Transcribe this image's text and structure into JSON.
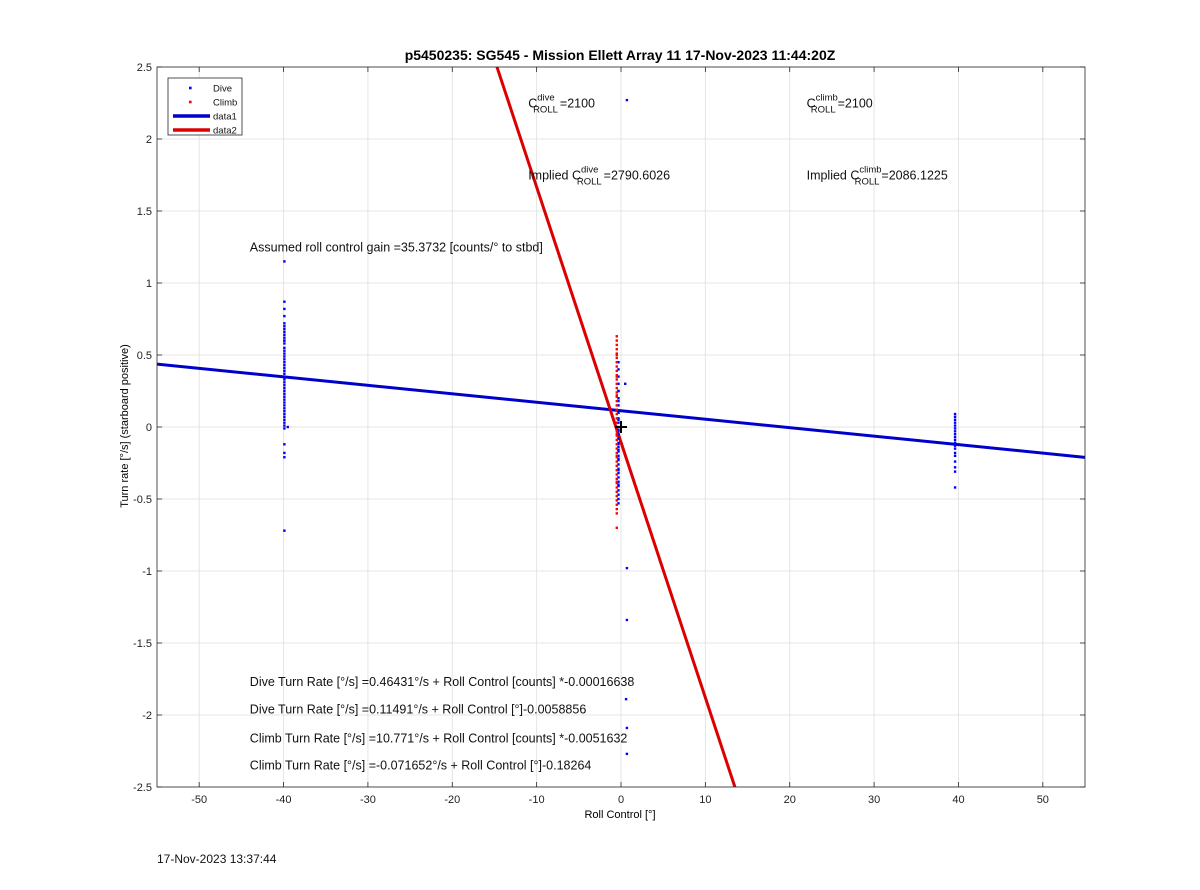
{
  "chart_data": {
    "type": "scatter",
    "title": "p5450235: SG545 - Mission Ellett Array 11 17-Nov-2023 11:44:20Z",
    "xlabel": "Roll Control [°]",
    "ylabel": "Turn rate [°/s] (starboard positive)",
    "xlim": [
      -55,
      55
    ],
    "ylim": [
      -2.5,
      2.5
    ],
    "x_ticks": [
      -50,
      -40,
      -30,
      -20,
      -10,
      0,
      10,
      20,
      30,
      40,
      50
    ],
    "y_ticks": [
      -2.5,
      -2,
      -1.5,
      -1,
      -0.5,
      0,
      0.5,
      1,
      1.5,
      2,
      2.5
    ],
    "grid": true,
    "legend_position": "top-left",
    "series": [
      {
        "name": "Dive",
        "kind": "points",
        "color": "#0000ff",
        "x": [
          -39.9,
          -39.9,
          -39.9,
          -39.9,
          -39.9,
          -39.9,
          -39.9,
          -39.9,
          -39.9,
          -39.9,
          -39.9,
          -39.9,
          -39.9,
          -39.9,
          -39.9,
          -39.9,
          -39.9,
          -39.9,
          -39.9,
          -39.9,
          -39.9,
          -39.9,
          -39.9,
          -39.9,
          -39.9,
          -39.9,
          -39.9,
          -39.9,
          -39.9,
          -39.9,
          -39.9,
          -39.9,
          -39.9,
          -39.9,
          -39.9,
          -39.9,
          -39.9,
          -39.9,
          -39.9,
          -39.9,
          -39.9,
          -39.9,
          -39.9,
          -39.9,
          -39.9,
          -39.9,
          -39.5,
          -0.3,
          -0.3,
          -0.3,
          -0.3,
          -0.3,
          -0.3,
          -0.3,
          -0.3,
          -0.3,
          -0.3,
          -0.3,
          -0.3,
          -0.3,
          -0.3,
          -0.3,
          -0.3,
          -0.3,
          -0.3,
          -0.3,
          -0.3,
          -0.3,
          -0.3,
          -0.3,
          -0.3,
          -0.3,
          -0.3,
          -0.3,
          -0.3,
          -0.3,
          -0.3,
          -0.3,
          -0.3,
          -0.3,
          -0.3,
          -0.3,
          -0.3,
          -0.3,
          -0.3,
          -0.3,
          -0.3,
          0.5,
          0.7,
          0.7,
          0.7,
          0.6,
          0.7,
          0.7,
          39.6,
          39.6,
          39.6,
          39.6,
          39.6,
          39.6,
          39.6,
          39.6,
          39.6,
          39.6,
          39.6,
          39.6,
          39.6,
          39.6,
          39.6,
          39.6,
          39.6,
          39.6,
          39.6
        ],
        "y": [
          1.15,
          0.87,
          0.82,
          0.77,
          0.72,
          0.7,
          0.68,
          0.66,
          0.64,
          0.62,
          0.6,
          0.58,
          0.55,
          0.53,
          0.51,
          0.49,
          0.47,
          0.45,
          0.43,
          0.41,
          0.39,
          0.37,
          0.35,
          0.33,
          0.31,
          0.29,
          0.27,
          0.25,
          0.23,
          0.21,
          0.19,
          0.17,
          0.15,
          0.13,
          0.11,
          0.09,
          0.07,
          0.05,
          0.03,
          0.01,
          -0.01,
          -0.12,
          -0.18,
          -0.21,
          -0.72,
          0.6,
          0.0,
          0.45,
          0.4,
          0.35,
          0.3,
          0.25,
          0.2,
          0.15,
          0.1,
          0.06,
          0.03,
          0.0,
          -0.02,
          -0.05,
          -0.08,
          -0.11,
          -0.14,
          -0.17,
          -0.2,
          -0.23,
          -0.26,
          -0.29,
          -0.32,
          -0.35,
          -0.38,
          -0.41,
          -0.44,
          -0.47,
          -0.5,
          -0.53,
          0.25,
          0.18,
          0.1,
          0.05,
          -0.03,
          -0.08,
          -0.12,
          -0.16,
          -0.22,
          -0.3,
          -0.4,
          0.3,
          2.27,
          -0.98,
          -1.34,
          -1.89,
          -2.09,
          -2.27,
          0.09,
          0.07,
          0.05,
          0.03,
          0.01,
          -0.01,
          -0.03,
          -0.05,
          -0.07,
          -0.09,
          -0.11,
          -0.13,
          -0.15,
          -0.18,
          -0.2,
          -0.24,
          -0.28,
          -0.31,
          -0.42
        ]
      },
      {
        "name": "Climb",
        "kind": "points",
        "color": "#ff0000",
        "x": [
          -0.5,
          -0.5,
          -0.5,
          -0.5,
          -0.5,
          -0.5,
          -0.5,
          -0.5,
          -0.5,
          -0.5,
          -0.5,
          -0.5,
          -0.5,
          -0.5,
          -0.5,
          -0.5,
          -0.5,
          -0.5,
          -0.5,
          -0.5,
          -0.5,
          -0.5,
          -0.5,
          -0.5,
          -0.5,
          -0.5,
          -0.5,
          -0.5,
          -0.5,
          -0.5,
          -0.5,
          -0.5,
          -0.5,
          -0.5,
          -0.5,
          -0.5,
          -0.5,
          -0.5,
          -0.5,
          -0.5,
          -0.5,
          -0.5,
          -0.5,
          -0.5,
          -0.5,
          -0.5,
          -0.5,
          -0.5,
          -0.5,
          -0.5
        ],
        "y": [
          0.63,
          0.6,
          0.57,
          0.54,
          0.51,
          0.48,
          0.45,
          0.42,
          0.39,
          0.36,
          0.33,
          0.3,
          0.27,
          0.24,
          0.21,
          0.18,
          0.15,
          0.12,
          0.09,
          0.06,
          0.03,
          0.0,
          -0.03,
          -0.06,
          -0.09,
          -0.12,
          -0.15,
          -0.18,
          -0.21,
          -0.24,
          -0.27,
          -0.3,
          -0.33,
          -0.36,
          -0.39,
          -0.42,
          -0.45,
          -0.48,
          -0.51,
          -0.54,
          -0.57,
          -0.6,
          -0.7,
          0.5,
          0.35,
          0.22,
          0.12,
          -0.05,
          -0.2,
          -0.38
        ]
      },
      {
        "name": "data1",
        "kind": "line",
        "color": "#0000cc",
        "x": [
          -55,
          55
        ],
        "y": [
          0.4367,
          -0.2107
        ]
      },
      {
        "name": "data2",
        "kind": "line",
        "color": "#dd0000",
        "x": [
          -14.7,
          13.5
        ],
        "y": [
          2.5,
          -2.5
        ]
      }
    ],
    "origin_marker": {
      "x": 0,
      "y": 0,
      "symbol": "+",
      "color": "#000000"
    },
    "annotations": [
      {
        "id": "c-dive",
        "x": -11,
        "y": 2.22,
        "base": "C",
        "sup": "dive",
        "sub": "ROLL",
        "suffix": "=2100"
      },
      {
        "id": "c-climb",
        "x": 22,
        "y": 2.22,
        "base": "C",
        "sup": "climb",
        "sub": "ROLL",
        "suffix": "=2100"
      },
      {
        "id": "implied-dive",
        "x": -11,
        "y": 1.72,
        "prefix": "Implied ",
        "base": "C",
        "sup": "dive",
        "sub": "ROLL",
        "suffix": "=2790.6026"
      },
      {
        "id": "implied-climb",
        "x": 22,
        "y": 1.72,
        "prefix": "Implied ",
        "base": "C",
        "sup": "climb",
        "sub": "ROLL",
        "suffix": "=2086.1225"
      },
      {
        "id": "roll-gain",
        "x": -44,
        "y": 1.22,
        "text": "Assumed roll control gain =35.3732 [counts/° to stbd]"
      },
      {
        "id": "dive-rate-counts",
        "x": -44,
        "y": -1.8,
        "text": "Dive Turn Rate [°/s] =0.46431°/s + Roll Control [counts] *-0.00016638"
      },
      {
        "id": "dive-rate-deg",
        "x": -44,
        "y": -1.99,
        "text": "Dive Turn Rate [°/s] =0.11491°/s + Roll Control [°]-0.0058856"
      },
      {
        "id": "climb-rate-counts",
        "x": -44,
        "y": -2.19,
        "text": "Climb Turn Rate [°/s] =10.771°/s + Roll Control [counts] *-0.0051632"
      },
      {
        "id": "climb-rate-deg",
        "x": -44,
        "y": -2.38,
        "text": "Climb Turn Rate [°/s] =-0.071652°/s + Roll Control [°]-0.18264"
      }
    ]
  },
  "footer": {
    "timestamp": "17-Nov-2023 13:37:44"
  }
}
